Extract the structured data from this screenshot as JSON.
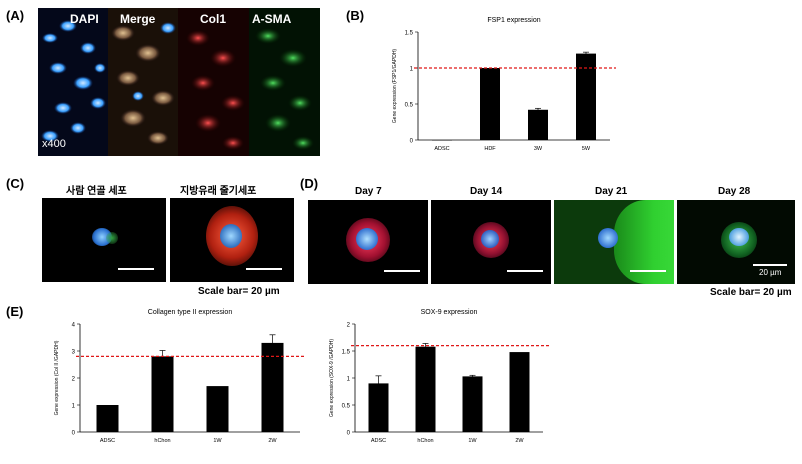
{
  "panels": {
    "A": {
      "letter": "(A)",
      "channels": [
        "DAPI",
        "Merge",
        "Col1",
        "A-SMA"
      ],
      "magnification": "x400"
    },
    "B": {
      "letter": "(B)"
    },
    "C": {
      "letter": "(C)",
      "captions": [
        "사람 연골 세포",
        "지방유래 줄기세포"
      ],
      "scale_bar_text": "Scale bar= 20 µm"
    },
    "D": {
      "letter": "(D)",
      "captions": [
        "Day 7",
        "Day 14",
        "Day 21",
        "Day 28"
      ],
      "inset_scale_text": "20 µm",
      "scale_bar_text": "Scale bar= 20 µm"
    },
    "E": {
      "letter": "(E)"
    }
  },
  "colors": {
    "bar": "#000000",
    "reference_line": "#e01818",
    "dapi": "#3aa0ff",
    "col1": "#d02020",
    "asma": "#20b030"
  },
  "chart_data": [
    {
      "id": "B",
      "type": "bar",
      "title": "FSP1 expression",
      "ylabel": "Gene expression (FSP1/GAPDH)",
      "xlabel": "",
      "categories": [
        "ADSC",
        "HDF",
        "3W",
        "5W"
      ],
      "values": [
        0.0,
        1.0,
        0.42,
        1.2
      ],
      "errors": [
        0.0,
        0.0,
        0.02,
        0.02
      ],
      "ylim": [
        0,
        1.5
      ],
      "yticks": [
        0,
        0.5,
        1,
        1.5
      ],
      "reference_line": 1.0,
      "grid": false
    },
    {
      "id": "E1",
      "type": "bar",
      "title": "Collagen type II expression",
      "ylabel": "Gene expression (Col II /GAPDH)",
      "xlabel": "",
      "categories": [
        "ADSC",
        "hChon",
        "1W",
        "2W"
      ],
      "values": [
        1.0,
        2.8,
        1.7,
        3.3
      ],
      "errors": [
        0.0,
        0.22,
        0.0,
        0.3
      ],
      "ylim": [
        0,
        4
      ],
      "yticks": [
        0,
        1,
        2,
        3,
        4
      ],
      "reference_line": 2.8,
      "grid": false
    },
    {
      "id": "E2",
      "type": "bar",
      "title": "SOX-9 expression",
      "ylabel": "Gene expression (SOX-9 /GAPDH)",
      "xlabel": "",
      "categories": [
        "ADSC",
        "hChon",
        "1W",
        "2W"
      ],
      "values": [
        0.9,
        1.58,
        1.03,
        1.48
      ],
      "errors": [
        0.14,
        0.06,
        0.02,
        0.0
      ],
      "ylim": [
        0,
        2
      ],
      "yticks": [
        0,
        0.5,
        1,
        1.5,
        2
      ],
      "reference_line": 1.6,
      "grid": false
    }
  ]
}
